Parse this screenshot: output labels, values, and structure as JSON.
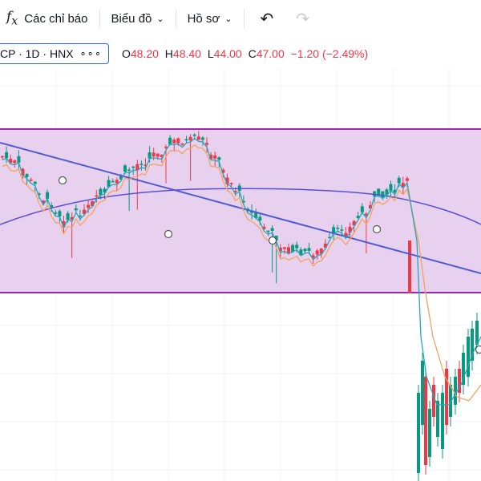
{
  "toolbar": {
    "indicators_label": "Các chỉ báo",
    "chart_label": "Biểu đồ",
    "profile_label": "Hồ sơ"
  },
  "legend": {
    "symbol": "CP · 1D · HNX",
    "more": "∘∘∘",
    "open_label": "O",
    "open": "48.20",
    "high_label": "H",
    "high": "48.40",
    "low_label": "L",
    "low": "44.00",
    "close_label": "C",
    "close": "47.00",
    "change": "−1.20 (−2.49%)"
  },
  "colors": {
    "up": "#089981",
    "down": "#f23645",
    "zone_fill": "#e8d1ee",
    "zone_border": "#9c27b0",
    "trend_line": "#4f5bd5",
    "ma_long": "#5b4fd8",
    "ma_fast": "#26a6b8",
    "ma_mid": "#f5a25f"
  }
}
